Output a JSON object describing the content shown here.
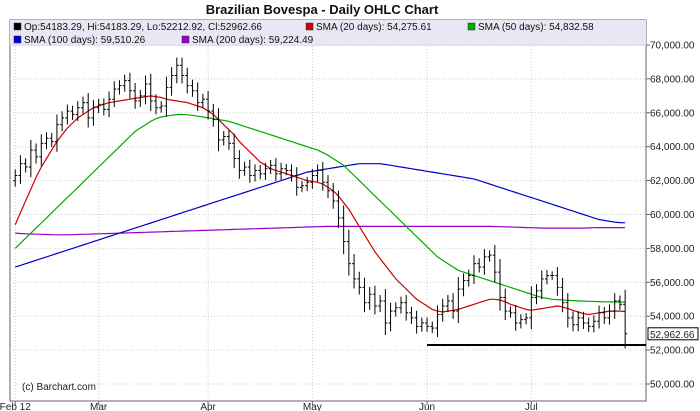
{
  "chart_data": {
    "type": "line",
    "title": "Brazilian Bovespa - Daily OHLC Chart",
    "legend_rows": [
      [
        {
          "swatch": "#000000",
          "label": "Op:54183.29, Hi:54183.29, Lo:52212.92, Cl:52962.66"
        },
        {
          "swatch": "#cc0000",
          "label": "SMA (20 days): 54,275.61"
        },
        {
          "swatch": "#00aa00",
          "label": "SMA (50 days): 54,832.58"
        }
      ],
      [
        {
          "swatch": "#0000cc",
          "label": "SMA (100 days): 59,510.26"
        },
        {
          "swatch": "#9900cc",
          "label": "SMA (200 days): 59,224.49"
        }
      ]
    ],
    "legend_placement": "top",
    "credit": "(c) Barchart.com",
    "y_ticks": [
      "50,000.00",
      "52,000.00",
      "54,000.00",
      "56,000.00",
      "58,000.00",
      "60,000.00",
      "62,000.00",
      "64,000.00",
      "66,000.00",
      "68,000.00",
      "70,000.00"
    ],
    "ylim": [
      49000,
      71000
    ],
    "x_labels": [
      {
        "label": "Feb 12",
        "day": 0
      },
      {
        "label": "Mar",
        "day": 16
      },
      {
        "label": "Apr",
        "day": 37
      },
      {
        "label": "May",
        "day": 57
      },
      {
        "label": "Jun",
        "day": 79
      },
      {
        "label": "Jul",
        "day": 99
      }
    ],
    "x_range": [
      -1,
      121
    ],
    "last_close_label": "52,962.66",
    "support_line": {
      "value": 52300,
      "day_from": 79,
      "day_to": 121
    },
    "ohlc_close": [
      62300,
      63000,
      62800,
      63800,
      63400,
      64200,
      64500,
      64300,
      65300,
      65700,
      66100,
      65900,
      66300,
      66600,
      65700,
      66300,
      66500,
      66200,
      66800,
      67400,
      67600,
      67900,
      67300,
      66700,
      67000,
      67700,
      66700,
      66300,
      66400,
      67500,
      68200,
      68800,
      68200,
      67600,
      67300,
      66600,
      66800,
      66100,
      65600,
      64400,
      64600,
      64200,
      63300,
      62600,
      62800,
      62300,
      62600,
      62400,
      62700,
      62900,
      62400,
      62700,
      62600,
      62300,
      61600,
      61700,
      61900,
      62300,
      62600,
      61900,
      61400,
      60800,
      59800,
      58400,
      57100,
      56200,
      55700,
      54800,
      55300,
      54600,
      54900,
      53600,
      54300,
      54500,
      54800,
      54200,
      53900,
      53400,
      53600,
      53400,
      53300,
      54100,
      54600,
      54900,
      54300,
      55600,
      56100,
      56400,
      57100,
      56900,
      57500,
      57600,
      56600,
      55100,
      54300,
      54200,
      53600,
      53800,
      53900,
      55100,
      55500,
      56200,
      56400,
      56400,
      55700,
      54800,
      53900,
      53500,
      53900,
      53600,
      53400,
      53700,
      54200,
      53900,
      54300,
      54900,
      54700,
      52963
    ],
    "sma20": [
      59400,
      60100,
      60800,
      61500,
      62200,
      62800,
      63300,
      63800,
      64300,
      64700,
      65100,
      65400,
      65700,
      65900,
      66100,
      66300,
      66400,
      66500,
      66600,
      66650,
      66700,
      66750,
      66800,
      66850,
      66900,
      66950,
      67000,
      66950,
      66900,
      66800,
      66750,
      66700,
      66650,
      66600,
      66500,
      66400,
      66300,
      66100,
      65900,
      65600,
      65300,
      65000,
      64700,
      64300,
      64000,
      63700,
      63400,
      63100,
      62900,
      62700,
      62600,
      62500,
      62400,
      62300,
      62200,
      62100,
      62000,
      61950,
      61900,
      61800,
      61600,
      61400,
      61100,
      60700,
      60300,
      59800,
      59300,
      58800,
      58300,
      57800,
      57400,
      57000,
      56600,
      56200,
      55900,
      55600,
      55300,
      55000,
      54800,
      54600,
      54400,
      54300,
      54250,
      54300,
      54350,
      54400,
      54500,
      54600,
      54700,
      54800,
      54900,
      55000,
      55000,
      54950,
      54850,
      54700,
      54600,
      54500,
      54400,
      54350,
      54400,
      54450,
      54500,
      54550,
      54600,
      54550,
      54450,
      54350,
      54250,
      54150,
      54100,
      54150,
      54200,
      54250,
      54300,
      54300,
      54300,
      54276
    ],
    "sma50": [
      58000,
      58300,
      58600,
      58900,
      59200,
      59500,
      59800,
      60100,
      60400,
      60700,
      61000,
      61300,
      61600,
      61900,
      62200,
      62500,
      62800,
      63100,
      63400,
      63700,
      64000,
      64300,
      64600,
      64900,
      65100,
      65300,
      65500,
      65650,
      65750,
      65800,
      65850,
      65900,
      65900,
      65880,
      65850,
      65800,
      65750,
      65700,
      65650,
      65600,
      65550,
      65500,
      65400,
      65300,
      65200,
      65100,
      65000,
      64900,
      64800,
      64700,
      64600,
      64500,
      64400,
      64300,
      64200,
      64100,
      64000,
      63900,
      63800,
      63650,
      63500,
      63300,
      63100,
      62900,
      62600,
      62300,
      62000,
      61700,
      61400,
      61100,
      60800,
      60500,
      60200,
      59900,
      59600,
      59300,
      59000,
      58700,
      58400,
      58100,
      57800,
      57500,
      57300,
      57100,
      56900,
      56700,
      56600,
      56500,
      56400,
      56300,
      56200,
      56100,
      56000,
      55900,
      55800,
      55700,
      55600,
      55500,
      55400,
      55300,
      55200,
      55100,
      55050,
      55000,
      54980,
      54960,
      54940,
      54920,
      54900,
      54890,
      54880,
      54870,
      54860,
      54850,
      54845,
      54840,
      54835,
      54833
    ],
    "sma100": [
      56900,
      57000,
      57100,
      57200,
      57300,
      57400,
      57500,
      57600,
      57700,
      57800,
      57900,
      58000,
      58100,
      58200,
      58300,
      58400,
      58500,
      58600,
      58700,
      58800,
      58900,
      59000,
      59100,
      59200,
      59300,
      59400,
      59500,
      59600,
      59700,
      59800,
      59900,
      60000,
      60100,
      60200,
      60300,
      60400,
      60500,
      60600,
      60700,
      60800,
      60900,
      61000,
      61100,
      61200,
      61300,
      61400,
      61500,
      61600,
      61700,
      61800,
      61900,
      62000,
      62100,
      62200,
      62300,
      62400,
      62500,
      62550,
      62600,
      62650,
      62700,
      62750,
      62800,
      62850,
      62900,
      62950,
      63000,
      63000,
      63000,
      63000,
      63000,
      62950,
      62900,
      62850,
      62800,
      62750,
      62700,
      62650,
      62600,
      62550,
      62500,
      62450,
      62400,
      62350,
      62300,
      62250,
      62200,
      62150,
      62100,
      62000,
      61900,
      61800,
      61700,
      61600,
      61500,
      61400,
      61300,
      61200,
      61100,
      61000,
      60900,
      60800,
      60700,
      60600,
      60500,
      60400,
      60300,
      60200,
      60100,
      60000,
      59900,
      59800,
      59700,
      59650,
      59600,
      59550,
      59520,
      59510
    ],
    "sma200": [
      58900,
      58880,
      58860,
      58850,
      58840,
      58830,
      58820,
      58810,
      58800,
      58800,
      58800,
      58810,
      58820,
      58830,
      58840,
      58850,
      58860,
      58870,
      58880,
      58890,
      58900,
      58910,
      58920,
      58930,
      58940,
      58950,
      58960,
      58970,
      58980,
      58990,
      59000,
      59010,
      59020,
      59030,
      59040,
      59050,
      59060,
      59070,
      59080,
      59090,
      59100,
      59110,
      59120,
      59130,
      59140,
      59150,
      59160,
      59170,
      59180,
      59190,
      59200,
      59210,
      59220,
      59230,
      59240,
      59250,
      59260,
      59270,
      59280,
      59290,
      59300,
      59300,
      59300,
      59300,
      59300,
      59300,
      59300,
      59300,
      59300,
      59300,
      59300,
      59300,
      59300,
      59300,
      59300,
      59300,
      59300,
      59300,
      59300,
      59300,
      59300,
      59300,
      59300,
      59300,
      59300,
      59300,
      59300,
      59300,
      59300,
      59300,
      59300,
      59300,
      59290,
      59280,
      59270,
      59260,
      59250,
      59240,
      59230,
      59220,
      59210,
      59200,
      59200,
      59200,
      59200,
      59200,
      59200,
      59200,
      59200,
      59200,
      59210,
      59220,
      59225,
      59225,
      59225,
      59225,
      59225,
      59224
    ]
  }
}
